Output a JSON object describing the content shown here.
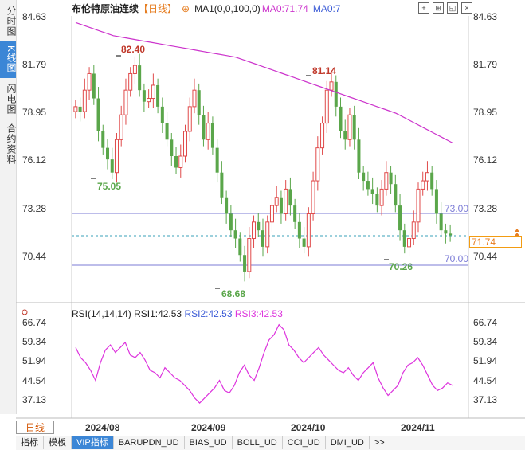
{
  "sidebar": {
    "tabs": [
      {
        "label": "分时图",
        "active": false
      },
      {
        "label": "K线图",
        "active": true
      },
      {
        "label": "闪电图",
        "active": false
      },
      {
        "label": "合约资料",
        "active": false
      }
    ]
  },
  "header": {
    "title": "布伦特原油连续",
    "period_badge": "【日线】",
    "ma1": "MA1(0,0,100,0)",
    "ma0_value": "MA0:71.74",
    "ma0_7": "MA0:7"
  },
  "price_axis": {
    "left": [
      "84.63",
      "81.79",
      "78.95",
      "76.12",
      "73.28",
      "70.44"
    ],
    "right": [
      "84.63",
      "81.79",
      "78.95",
      "76.12",
      "73.28",
      "70.44"
    ]
  },
  "current_price": "71.74",
  "annotations": {
    "high1": "82.40",
    "high2": "81.14",
    "low1": "75.05",
    "low2": "68.68",
    "low3": "70.26",
    "line_upper": "73.00",
    "line_lower": "70.00"
  },
  "rsi": {
    "label": "RSI(14,14,14)",
    "rsi1": "RSI1:42.53",
    "rsi2": "RSI2:42.53",
    "rsi3": "RSI3:42.53",
    "axis_left": [
      "66.74",
      "59.34",
      "51.94",
      "44.54",
      "37.13"
    ],
    "axis_right": [
      "66.74",
      "59.34",
      "51.94",
      "44.54",
      "37.13"
    ]
  },
  "x_axis": [
    "2024/08",
    "2024/09",
    "2024/10",
    "2024/11"
  ],
  "period_button": "日线",
  "bottom_tabs": [
    {
      "label": "指标",
      "active": false
    },
    {
      "label": "模板",
      "active": false
    },
    {
      "label": "VIP指标",
      "active": true
    },
    {
      "label": "BARUPDN_UD",
      "active": false
    },
    {
      "label": "BIAS_UD",
      "active": false
    },
    {
      "label": "BOLL_UD",
      "active": false
    },
    {
      "label": "CCI_UD",
      "active": false
    },
    {
      "label": "DMI_UD",
      "active": false
    },
    {
      "label": ">>",
      "active": false
    }
  ],
  "colors": {
    "up": "#e04a4a",
    "down": "#5aa64a",
    "ma": "#cc33cc",
    "hline": "#7b7bd6",
    "rsi": "#dd33dd",
    "accent": "#3b86d6"
  },
  "chart_data": {
    "type": "candlestick",
    "y_axis_range": [
      68.0,
      85.0
    ],
    "hlines": [
      73.0,
      70.0
    ],
    "ma_line": [
      84.6,
      84.4,
      84.2,
      84.0,
      83.8,
      83.7,
      83.6,
      83.5,
      83.4,
      83.3,
      83.2,
      83.1,
      83.0,
      82.9,
      82.8,
      82.7,
      82.6,
      82.5,
      82.3,
      82.1,
      81.9,
      81.7,
      81.5,
      81.3,
      81.1,
      80.9,
      80.7,
      80.5,
      80.3,
      80.1,
      79.9,
      79.7,
      79.5,
      79.3,
      79.1,
      78.8,
      78.5,
      78.2,
      77.9,
      77.6,
      77.3
    ],
    "rsi_line": [
      57,
      53,
      51,
      48,
      44,
      51,
      56,
      58,
      55,
      57,
      59,
      54,
      53,
      55,
      52,
      48,
      47,
      45,
      49,
      47,
      45,
      44,
      42,
      40,
      37,
      35,
      37,
      39,
      41,
      44,
      40,
      39,
      42,
      47,
      50,
      46,
      44,
      49,
      55,
      60,
      62,
      66,
      64,
      58,
      56,
      53,
      51,
      53,
      55,
      57,
      54,
      52,
      50,
      48,
      47,
      49,
      46,
      44,
      47,
      49,
      51,
      45,
      41,
      38,
      40,
      42,
      47,
      50,
      51,
      53,
      50,
      46,
      42,
      40,
      41,
      43,
      42
    ]
  }
}
